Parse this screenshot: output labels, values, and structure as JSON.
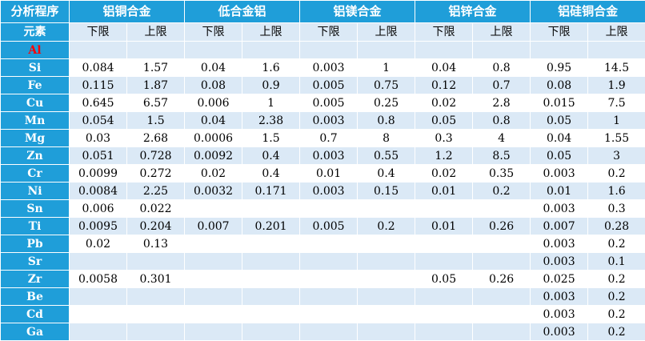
{
  "header": {
    "corner": "分析程序",
    "groups": [
      "铝铜合金",
      "低合金铝",
      "铝镁合金",
      "铝锌合金",
      "铝硅铜合金"
    ]
  },
  "subheader": {
    "first": "元素",
    "limits": [
      "下限",
      "上限",
      "下限",
      "上限",
      "下限",
      "上限",
      "下限",
      "上限",
      "下限",
      "上限"
    ]
  },
  "colors": {
    "header_bg": "#1f9ed9",
    "stripe_bg": "#dbe9f6",
    "highlight_element": "#ff0000"
  },
  "rows": [
    {
      "element": "Al",
      "values": [
        "",
        "",
        "",
        "",
        "",
        "",
        "",
        "",
        "",
        ""
      ]
    },
    {
      "element": "Si",
      "values": [
        "0.084",
        "1.57",
        "0.04",
        "1.6",
        "0.003",
        "1",
        "0.04",
        "0.8",
        "0.95",
        "14.5"
      ]
    },
    {
      "element": "Fe",
      "values": [
        "0.115",
        "1.87",
        "0.08",
        "0.9",
        "0.005",
        "0.75",
        "0.12",
        "0.7",
        "0.08",
        "1.9"
      ]
    },
    {
      "element": "Cu",
      "values": [
        "0.645",
        "6.57",
        "0.006",
        "1",
        "0.005",
        "0.25",
        "0.02",
        "2.8",
        "0.015",
        "7.5"
      ]
    },
    {
      "element": "Mn",
      "values": [
        "0.054",
        "1.5",
        "0.04",
        "2.38",
        "0.003",
        "0.8",
        "0.05",
        "0.8",
        "0.05",
        "1"
      ]
    },
    {
      "element": "Mg",
      "values": [
        "0.03",
        "2.68",
        "0.0006",
        "1.5",
        "0.7",
        "8",
        "0.3",
        "4",
        "0.04",
        "1.55"
      ]
    },
    {
      "element": "Zn",
      "values": [
        "0.051",
        "0.728",
        "0.0092",
        "0.4",
        "0.003",
        "0.55",
        "1.2",
        "8.5",
        "0.05",
        "3"
      ]
    },
    {
      "element": "Cr",
      "values": [
        "0.0099",
        "0.272",
        "0.02",
        "0.4",
        "0.01",
        "0.4",
        "0.02",
        "0.35",
        "0.003",
        "0.2"
      ]
    },
    {
      "element": "Ni",
      "values": [
        "0.0084",
        "2.25",
        "0.0032",
        "0.171",
        "0.003",
        "0.15",
        "0.01",
        "0.2",
        "0.01",
        "1.6"
      ]
    },
    {
      "element": "Sn",
      "values": [
        "0.006",
        "0.022",
        "",
        "",
        "",
        "",
        "",
        "",
        "0.003",
        "0.3"
      ]
    },
    {
      "element": "Ti",
      "values": [
        "0.0095",
        "0.204",
        "0.007",
        "0.201",
        "0.005",
        "0.2",
        "0.01",
        "0.26",
        "0.007",
        "0.28"
      ]
    },
    {
      "element": "Pb",
      "values": [
        "0.02",
        "0.13",
        "",
        "",
        "",
        "",
        "",
        "",
        "0.003",
        "0.2"
      ]
    },
    {
      "element": "Sr",
      "values": [
        "",
        "",
        "",
        "",
        "",
        "",
        "",
        "",
        "0.003",
        "0.1"
      ]
    },
    {
      "element": "Zr",
      "values": [
        "0.0058",
        "0.301",
        "",
        "",
        "",
        "",
        "0.05",
        "0.26",
        "0.025",
        "0.2"
      ]
    },
    {
      "element": "Be",
      "values": [
        "",
        "",
        "",
        "",
        "",
        "",
        "",
        "",
        "0.003",
        "0.2"
      ]
    },
    {
      "element": "Cd",
      "values": [
        "",
        "",
        "",
        "",
        "",
        "",
        "",
        "",
        "0.003",
        "0.2"
      ]
    },
    {
      "element": "Ga",
      "values": [
        "",
        "",
        "",
        "",
        "",
        "",
        "",
        "",
        "0.003",
        "0.2"
      ]
    }
  ]
}
